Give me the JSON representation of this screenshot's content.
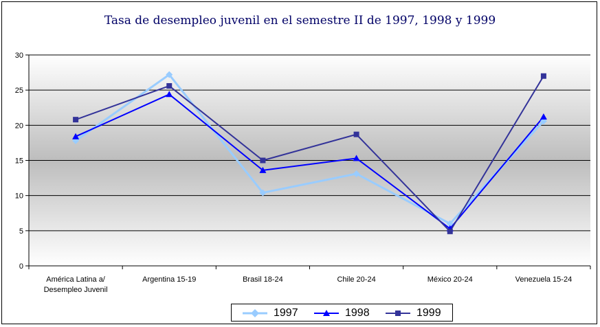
{
  "colors": {
    "1997": "#99ccff",
    "1998": "#0000ff",
    "1999": "#333399"
  },
  "chart_data": {
    "type": "line",
    "title": "Tasa de desempleo juvenil en el semestre II de 1997, 1998 y 1999",
    "categories": [
      [
        "América Latina a/",
        "Desempleo Juvenil"
      ],
      [
        "Argentina 15-19"
      ],
      [
        "Brasil 18-24"
      ],
      [
        "Chile 20-24"
      ],
      [
        "México 20-24"
      ],
      [
        "Venezuela 15-24"
      ]
    ],
    "ylim": [
      0,
      30
    ],
    "yticks": [
      0,
      5,
      10,
      15,
      20,
      25,
      30
    ],
    "grid": true,
    "legend_position": "bottom",
    "series": [
      {
        "name": "1997",
        "marker": "diamond",
        "values": [
          17.8,
          27.2,
          10.4,
          13.1,
          6.0,
          20.6
        ]
      },
      {
        "name": "1998",
        "marker": "triangle",
        "values": [
          18.4,
          24.4,
          13.6,
          15.3,
          5.3,
          21.2
        ]
      },
      {
        "name": "1999",
        "marker": "square",
        "values": [
          20.8,
          25.6,
          15.0,
          18.7,
          4.9,
          27.0
        ]
      }
    ]
  }
}
